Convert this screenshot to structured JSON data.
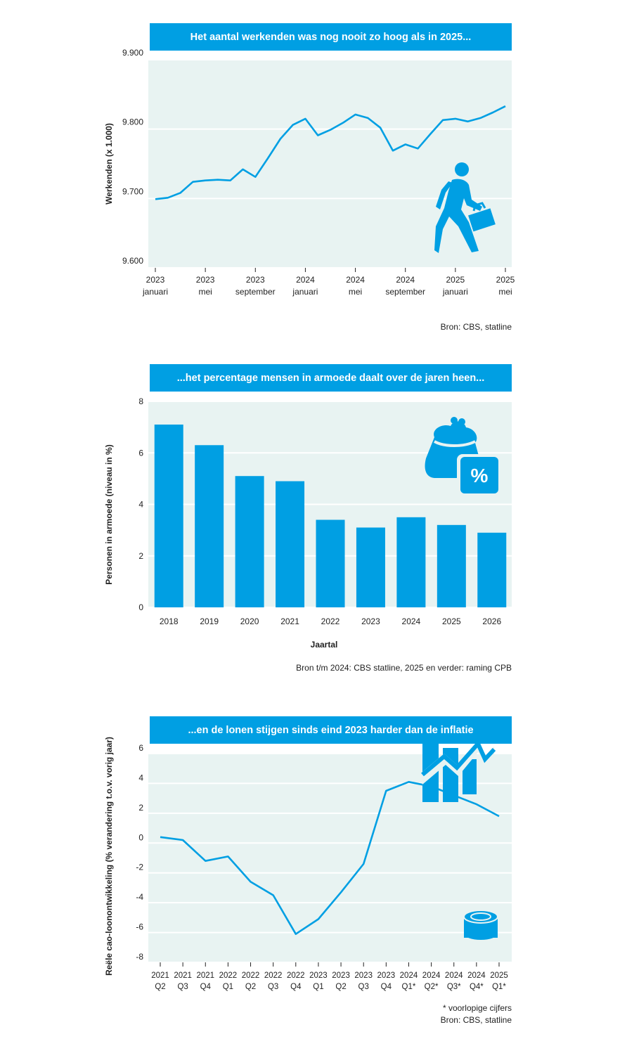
{
  "colors": {
    "accent": "#009fe3",
    "plot_bg": "#e8f3f2",
    "grid": "#ffffff"
  },
  "icons": [
    "walking-person-briefcase-icon",
    "purse-percent-icon",
    "rising-chart-coins-icon"
  ],
  "chart_data": [
    {
      "type": "line",
      "title": "Het aantal werkenden was nog nooit zo hoog als in 2025...",
      "ylabel": "Werkenden (x 1.000)",
      "xlabel": "",
      "ylim": [
        9600,
        9900
      ],
      "yticks": [
        9600,
        9700,
        9800,
        9900
      ],
      "ytick_labels": [
        "9.600",
        "9.700",
        "9.800",
        "9.900"
      ],
      "xticks": [
        {
          "index": 0,
          "line1": "2023",
          "line2": "januari"
        },
        {
          "index": 4,
          "line1": "2023",
          "line2": "mei"
        },
        {
          "index": 8,
          "line1": "2023",
          "line2": "september"
        },
        {
          "index": 12,
          "line1": "2024",
          "line2": "januari"
        },
        {
          "index": 16,
          "line1": "2024",
          "line2": "mei"
        },
        {
          "index": 20,
          "line1": "2024",
          "line2": "september"
        },
        {
          "index": 24,
          "line1": "2025",
          "line2": "januari"
        },
        {
          "index": 28,
          "line1": "2025",
          "line2": "mei"
        }
      ],
      "series": [
        {
          "values": [
            9699,
            9701,
            9708,
            9724,
            9726,
            9727,
            9726,
            9742,
            9731,
            9758,
            9786,
            9806,
            9815,
            9791,
            9799,
            9809,
            9821,
            9816,
            9802,
            9769,
            9778,
            9772,
            9793,
            9813,
            9815,
            9811,
            9816,
            9824,
            9833
          ]
        }
      ],
      "grid": true,
      "source": "Bron: CBS, statline"
    },
    {
      "type": "bar",
      "title": "...het percentage mensen in armoede daalt over de jaren heen...",
      "ylabel": "Personen in armoede (niveau in %)",
      "xlabel": "Jaartal",
      "categories": [
        "2018",
        "2019",
        "2020",
        "2021",
        "2022",
        "2023",
        "2024",
        "2025",
        "2026"
      ],
      "values": [
        7.1,
        6.3,
        5.1,
        4.9,
        3.4,
        3.1,
        3.5,
        3.2,
        2.9
      ],
      "ylim": [
        0,
        8
      ],
      "yticks": [
        0,
        2,
        4,
        6,
        8
      ],
      "ytick_labels": [
        "0",
        "2",
        "4",
        "6",
        "8"
      ],
      "grid": true,
      "source": "Bron t/m 2024: CBS statline, 2025 en verder: raming CPB"
    },
    {
      "type": "line",
      "title": "...en de lonen stijgen sinds eind 2023 harder dan de inflatie",
      "ylabel": "Reële cao-loonontwikkeling (% verandering t.o.v. vorig jaar)",
      "xlabel": "",
      "categories": [
        {
          "line1": "2021",
          "line2": "Q2"
        },
        {
          "line1": "2021",
          "line2": "Q3"
        },
        {
          "line1": "2021",
          "line2": "Q4"
        },
        {
          "line1": "2022",
          "line2": "Q1"
        },
        {
          "line1": "2022",
          "line2": "Q2"
        },
        {
          "line1": "2022",
          "line2": "Q3"
        },
        {
          "line1": "2022",
          "line2": "Q4"
        },
        {
          "line1": "2023",
          "line2": "Q1"
        },
        {
          "line1": "2023",
          "line2": "Q2"
        },
        {
          "line1": "2023",
          "line2": "Q3"
        },
        {
          "line1": "2023",
          "line2": "Q4"
        },
        {
          "line1": "2024",
          "line2": "Q1*"
        },
        {
          "line1": "2024",
          "line2": "Q2*"
        },
        {
          "line1": "2024",
          "line2": "Q3*"
        },
        {
          "line1": "2024",
          "line2": "Q4*"
        },
        {
          "line1": "2025",
          "line2": "Q1*"
        }
      ],
      "series": [
        {
          "values": [
            0.4,
            0.2,
            -1.2,
            -0.9,
            -2.6,
            -3.5,
            -6.1,
            -5.1,
            -3.3,
            -1.4,
            3.5,
            4.1,
            3.8,
            3.2,
            2.6,
            1.8
          ]
        }
      ],
      "ylim": [
        -8,
        6
      ],
      "yticks": [
        -8,
        -6,
        -4,
        -2,
        0,
        2,
        4,
        6
      ],
      "ytick_labels": [
        "-8",
        "-6",
        "-4",
        "-2",
        "0",
        "2",
        "4",
        "6"
      ],
      "grid": true,
      "footnote": "* voorlopige cijfers",
      "source": "Bron: CBS, statline"
    }
  ]
}
